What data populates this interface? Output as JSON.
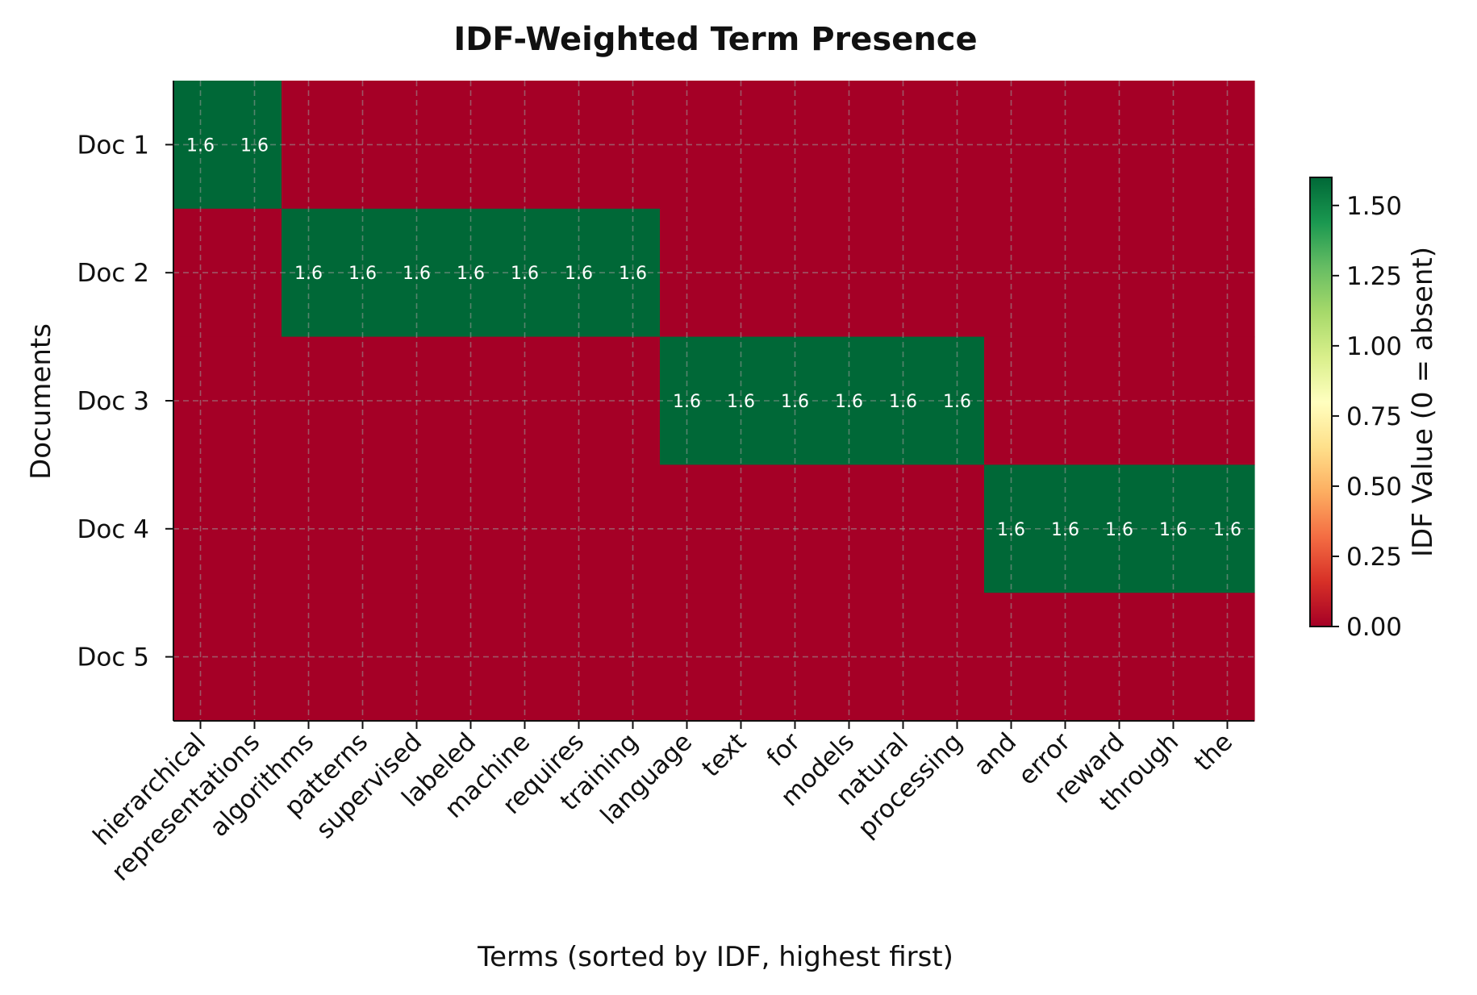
{
  "chart_data": {
    "type": "heatmap",
    "title": "IDF-Weighted Term Presence",
    "xlabel": "Terms (sorted by IDF, highest first)",
    "ylabel": "Documents",
    "rows": [
      "Doc 1",
      "Doc 2",
      "Doc 3",
      "Doc 4",
      "Doc 5"
    ],
    "columns": [
      "hierarchical",
      "representations",
      "algorithms",
      "patterns",
      "supervised",
      "labeled",
      "machine",
      "requires",
      "training",
      "language",
      "text",
      "for",
      "models",
      "natural",
      "processing",
      "and",
      "error",
      "reward",
      "through",
      "the"
    ],
    "values": [
      [
        1.6,
        1.6,
        0,
        0,
        0,
        0,
        0,
        0,
        0,
        0,
        0,
        0,
        0,
        0,
        0,
        0,
        0,
        0,
        0,
        0
      ],
      [
        0,
        0,
        1.6,
        1.6,
        1.6,
        1.6,
        1.6,
        1.6,
        1.6,
        0,
        0,
        0,
        0,
        0,
        0,
        0,
        0,
        0,
        0,
        0
      ],
      [
        0,
        0,
        0,
        0,
        0,
        0,
        0,
        0,
        0,
        1.6,
        1.6,
        1.6,
        1.6,
        1.6,
        1.6,
        0,
        0,
        0,
        0,
        0
      ],
      [
        0,
        0,
        0,
        0,
        0,
        0,
        0,
        0,
        0,
        0,
        0,
        0,
        0,
        0,
        0,
        1.6,
        1.6,
        1.6,
        1.6,
        1.6
      ],
      [
        0,
        0,
        0,
        0,
        0,
        0,
        0,
        0,
        0,
        0,
        0,
        0,
        0,
        0,
        0,
        0,
        0,
        0,
        0,
        0
      ]
    ],
    "cell_labels": [
      [
        "1.6",
        "1.6",
        "",
        "",
        "",
        "",
        "",
        "",
        "",
        "",
        "",
        "",
        "",
        "",
        "",
        "",
        "",
        "",
        "",
        ""
      ],
      [
        "",
        "",
        "1.6",
        "1.6",
        "1.6",
        "1.6",
        "1.6",
        "1.6",
        "1.6",
        "",
        "",
        "",
        "",
        "",
        "",
        "",
        "",
        "",
        "",
        ""
      ],
      [
        "",
        "",
        "",
        "",
        "",
        "",
        "",
        "",
        "",
        "1.6",
        "1.6",
        "1.6",
        "1.6",
        "1.6",
        "1.6",
        "",
        "",
        "",
        "",
        ""
      ],
      [
        "",
        "",
        "",
        "",
        "",
        "",
        "",
        "",
        "",
        "",
        "",
        "",
        "",
        "",
        "",
        "1.6",
        "1.6",
        "1.6",
        "1.6",
        "1.6"
      ],
      [
        "",
        "",
        "",
        "",
        "",
        "",
        "",
        "",
        "",
        "",
        "",
        "",
        "",
        "",
        "",
        "",
        "",
        "",
        "",
        ""
      ]
    ],
    "colorbar": {
      "label": "IDF Value (0 = absent)",
      "range": [
        0,
        1.6
      ],
      "ticks": [
        0.0,
        0.25,
        0.5,
        0.75,
        1.0,
        1.25,
        1.5
      ],
      "tick_labels": [
        "0.00",
        "0.25",
        "0.50",
        "0.75",
        "1.00",
        "1.25",
        "1.50"
      ],
      "colormap": "RdYlGn"
    },
    "colors": {
      "absent": "#a50026",
      "present": "#006837"
    },
    "grid": true
  }
}
